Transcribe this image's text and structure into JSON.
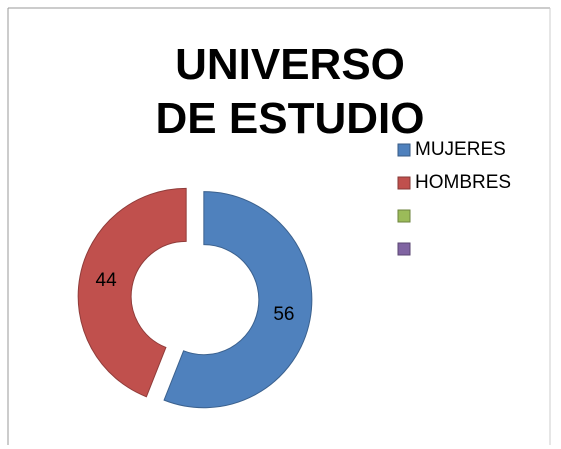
{
  "chart_data": {
    "type": "doughnut",
    "title": "UNIVERSO DE ESTUDIO",
    "categories": [
      "MUJERES",
      "HOMBRES",
      null,
      null
    ],
    "values": [
      56,
      44,
      null,
      null
    ],
    "colors": [
      "#4f81bd",
      "#c0504d",
      "#9bbb59",
      "#8064a2"
    ],
    "legend": "right"
  }
}
